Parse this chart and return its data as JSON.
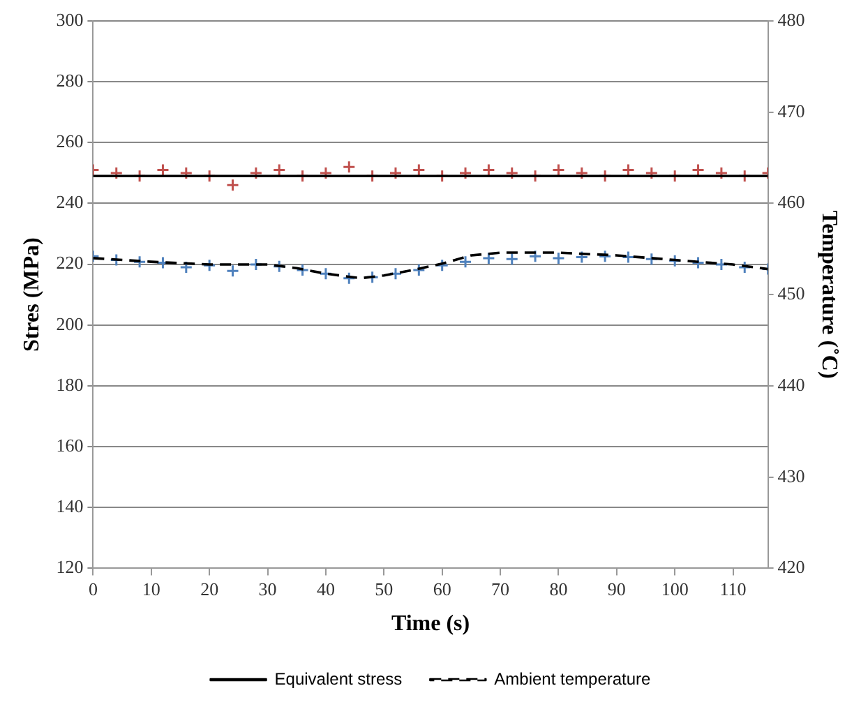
{
  "chart_data": {
    "type": "line",
    "xlabel": "Time (s)",
    "ylabel": "Stres (MPa)",
    "y2label": "Temperature (˚C)",
    "xlim": [
      0,
      116
    ],
    "xticks": [
      0,
      10,
      20,
      30,
      40,
      50,
      60,
      70,
      80,
      90,
      100,
      110
    ],
    "ylim": [
      120,
      300
    ],
    "yticks": [
      120,
      140,
      160,
      180,
      200,
      220,
      240,
      260,
      280,
      300
    ],
    "y2lim": [
      420,
      480
    ],
    "y2ticks": [
      420,
      430,
      440,
      450,
      460,
      470,
      480
    ],
    "grid": "y",
    "legend": "bottom",
    "series": [
      {
        "type": "scatter",
        "marker": "cross",
        "color": "#c0504d",
        "x": [
          0,
          4,
          8,
          12,
          16,
          20,
          24,
          28,
          32,
          36,
          40,
          44,
          48,
          52,
          56,
          60,
          64,
          68,
          72,
          76,
          80,
          84,
          88,
          92,
          96,
          100,
          104,
          108,
          112,
          116
        ],
        "values": [
          251,
          250,
          249,
          251,
          250,
          249,
          246,
          250,
          251,
          249,
          250,
          252,
          249,
          250,
          251,
          249,
          250,
          251,
          250,
          249,
          251,
          250,
          249,
          251,
          250,
          249,
          251,
          250,
          249,
          250
        ]
      },
      {
        "type": "scatter",
        "marker": "cross",
        "color": "#4f81bd",
        "axis": "y2",
        "x": [
          0,
          4,
          8,
          12,
          16,
          20,
          24,
          28,
          32,
          36,
          40,
          44,
          48,
          52,
          56,
          60,
          64,
          68,
          72,
          76,
          80,
          84,
          88,
          92,
          96,
          100,
          104,
          108,
          112,
          116
        ],
        "values": [
          454.2,
          453.8,
          453.6,
          453.5,
          453.0,
          453.2,
          452.6,
          453.3,
          453.1,
          452.7,
          452.3,
          451.8,
          451.9,
          452.3,
          452.7,
          453.2,
          453.6,
          454.0,
          453.9,
          454.2,
          454.0,
          454.1,
          454.2,
          454.1,
          453.9,
          453.7,
          453.5,
          453.3,
          453.0,
          452.8
        ]
      },
      {
        "name": "Equivalent stress",
        "color": "#000000",
        "marker": "none",
        "line_style": "solid",
        "x": [
          0,
          116
        ],
        "values": [
          249,
          249
        ]
      },
      {
        "name": "Ambient temperature",
        "color": "#000000",
        "marker": "none",
        "line_style": "dashed",
        "axis": "y2",
        "x": [
          0,
          10,
          20,
          30,
          35,
          40,
          46,
          50,
          55,
          60,
          65,
          70,
          80,
          90,
          100,
          110,
          116
        ],
        "values": [
          454.0,
          453.6,
          453.3,
          453.3,
          452.9,
          452.3,
          451.8,
          452.1,
          452.7,
          453.4,
          454.3,
          454.6,
          454.6,
          454.3,
          453.8,
          453.3,
          452.8
        ]
      }
    ]
  }
}
